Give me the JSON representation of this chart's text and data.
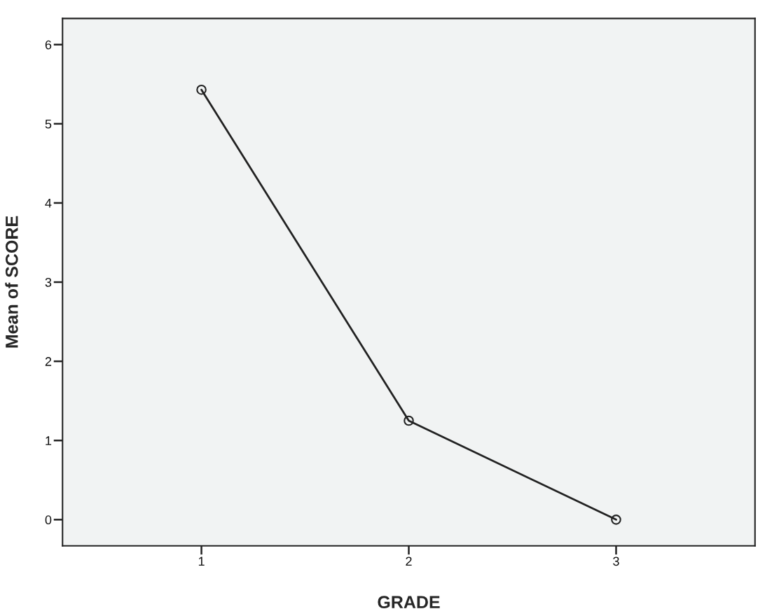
{
  "chart_data": {
    "type": "line",
    "xlabel": "GRADE",
    "ylabel": "Mean of SCORE",
    "categories": [
      "1",
      "2",
      "3"
    ],
    "series": [
      {
        "color": "#222222",
        "values": [
          5.43,
          1.25,
          0.0
        ]
      }
    ],
    "ylim": [
      -0.33,
      6.33
    ],
    "yticks": [
      0,
      1,
      2,
      3,
      4,
      5,
      6
    ],
    "marker": "circle",
    "line_style": "solid",
    "grid": false,
    "legend": false
  }
}
